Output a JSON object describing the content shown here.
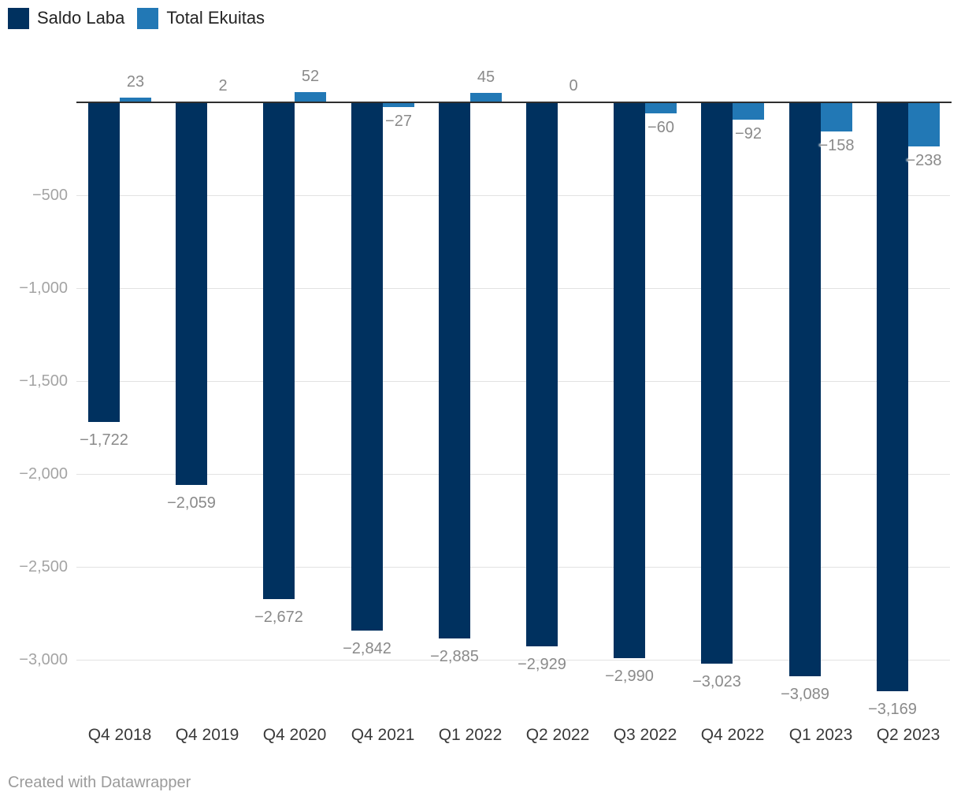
{
  "chart_data": {
    "type": "bar",
    "title": "",
    "xlabel": "",
    "ylabel": "",
    "categories": [
      "Q4 2018",
      "Q4 2019",
      "Q4 2020",
      "Q4 2021",
      "Q1 2022",
      "Q2 2022",
      "Q3 2022",
      "Q4 2022",
      "Q1 2023",
      "Q2 2023"
    ],
    "series": [
      {
        "name": "Saldo Laba",
        "color": "#00315f",
        "values": [
          -1722,
          -2059,
          -2672,
          -2842,
          -2885,
          -2929,
          -2990,
          -3023,
          -3089,
          -3169
        ],
        "value_labels": [
          "−1,722",
          "−2,059",
          "−2,672",
          "−2,842",
          "−2,885",
          "−2,929",
          "−2,990",
          "−3,023",
          "−3,089",
          "−3,169"
        ]
      },
      {
        "name": "Total Ekuitas",
        "color": "#2278b5",
        "values": [
          23,
          2,
          52,
          -27,
          45,
          0,
          -60,
          -92,
          -158,
          -238
        ],
        "value_labels": [
          "23",
          "2",
          "52",
          "−27",
          "45",
          "0",
          "−60",
          "−92",
          "−158",
          "−238"
        ]
      }
    ],
    "y_axis": {
      "ticks": [
        -500,
        -1000,
        -1500,
        -2000,
        -2500,
        -3000
      ],
      "tick_labels": [
        "−500",
        "−1,000",
        "−1,500",
        "−2,000",
        "−2,500",
        "−3,000"
      ],
      "range": [
        -3400,
        150
      ]
    },
    "grid": "horizontal",
    "legend_position": "top-left",
    "value_labels_shown": true
  },
  "colors": {
    "grid": "#e2e2e2",
    "baseline": "#2e2e2e",
    "y_tick_label": "#a4a4a4",
    "value_label": "#8a8a8a",
    "x_label": "#3a3a3a",
    "legend_text": "#242424",
    "background": "#ffffff"
  },
  "footer": {
    "credit": "Created with Datawrapper"
  }
}
